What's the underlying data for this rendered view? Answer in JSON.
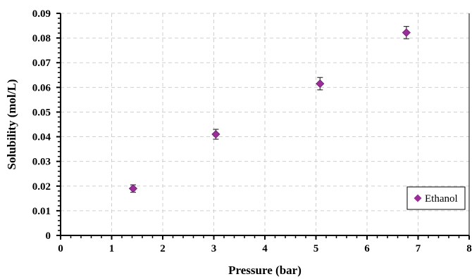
{
  "chart_data": {
    "type": "scatter",
    "xlabel": "Pressure (bar)",
    "ylabel": "Solubility (mol/L)",
    "xlim": [
      0,
      8
    ],
    "ylim": [
      0,
      0.09
    ],
    "x_ticks": [
      "0",
      "1",
      "2",
      "3",
      "4",
      "5",
      "6",
      "7",
      "8"
    ],
    "y_ticks": [
      "0",
      "0.01",
      "0.02",
      "0.03",
      "0.04",
      "0.05",
      "0.06",
      "0.07",
      "0.08",
      "0.09"
    ],
    "grid": "dashed",
    "legend_position": "bottom-right",
    "series": [
      {
        "name": "Ethanol",
        "color": "#9B2D9B",
        "marker": "diamond",
        "points": [
          {
            "x": 1.42,
            "y": 0.019,
            "err": 0.0015
          },
          {
            "x": 3.04,
            "y": 0.041,
            "err": 0.002
          },
          {
            "x": 5.08,
            "y": 0.0615,
            "err": 0.0025
          },
          {
            "x": 6.77,
            "y": 0.0822,
            "err": 0.0025
          }
        ]
      }
    ]
  }
}
